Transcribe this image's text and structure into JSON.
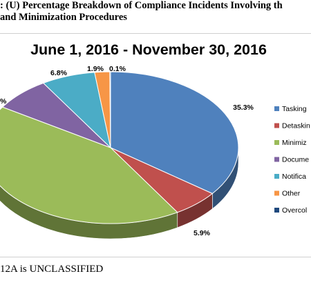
{
  "document": {
    "heading_line1": ": (U) Percentage Breakdown of Compliance Incidents Involving th",
    "heading_line2": "and Minimization Procedures",
    "footer": "12A is UNCLASSIFIED"
  },
  "chart_data": {
    "type": "pie",
    "title": "June 1, 2016 - November 30, 2016",
    "three_d": true,
    "legend_position": "right",
    "slices": [
      {
        "name": "Tasking",
        "value": 35.3,
        "label": "35.3%",
        "color": "#4F81BD"
      },
      {
        "name": "Detaskin",
        "value": 5.9,
        "label": "5.9%",
        "color": "#C0504D"
      },
      {
        "name": "Minimiz",
        "value": 42.7,
        "label": "",
        "color": "#9BBB59"
      },
      {
        "name": "Docume",
        "value": 7.2,
        "label": "",
        "color": "#8064A2"
      },
      {
        "name": "Notifica",
        "value": 6.8,
        "label": "6.8%",
        "color": "#4BACC6"
      },
      {
        "name": "Other",
        "value": 1.9,
        "label": "1.9%",
        "color": "#F79646"
      },
      {
        "name": "Overcol",
        "value": 0.1,
        "label": "0.1%",
        "color": "#1F497D"
      }
    ],
    "partial_labels": [
      {
        "text": "%"
      }
    ]
  }
}
